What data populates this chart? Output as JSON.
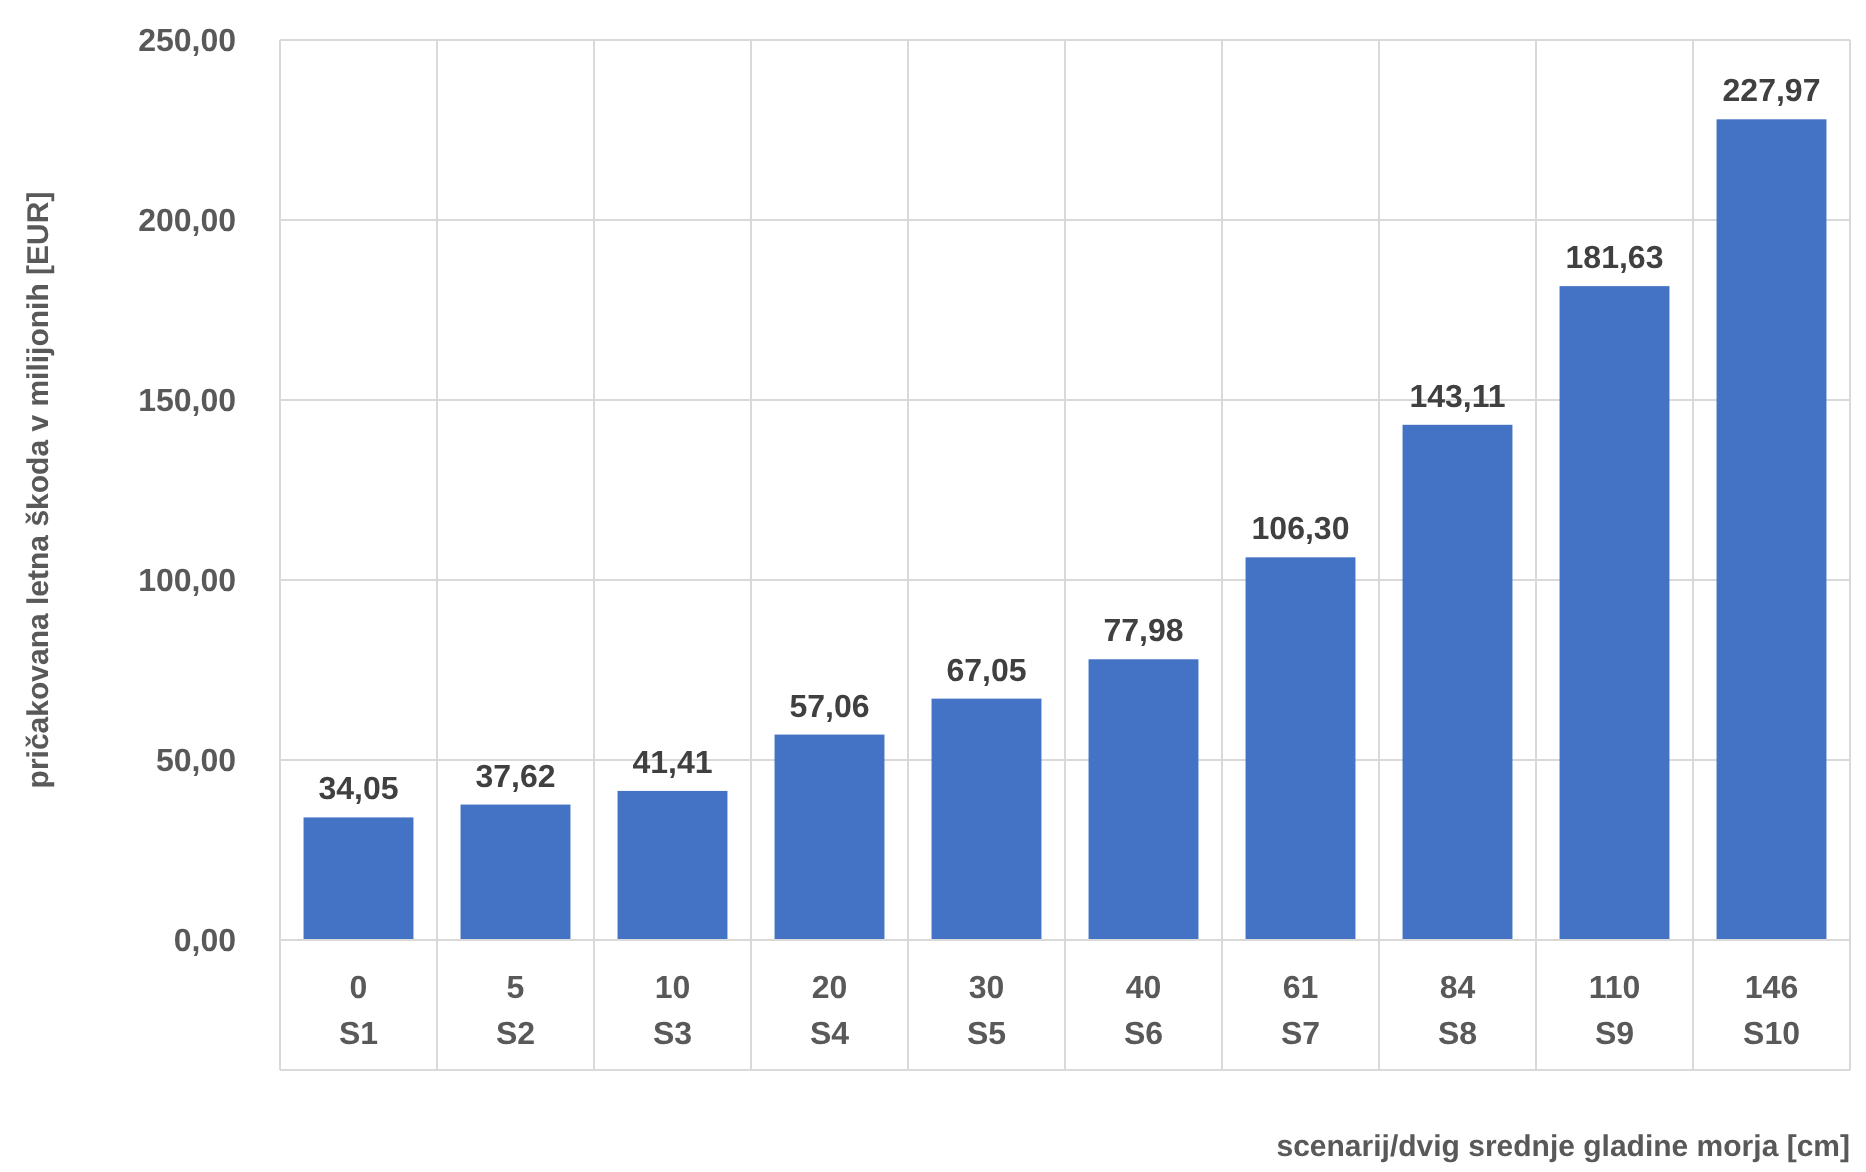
{
  "chart_data": {
    "type": "bar",
    "xlabel": "scenarij/dvig srednje gladine morja [cm]",
    "ylabel": "pričakovana letna škoda v milijonih [EUR]",
    "categories": [
      "0\nS1",
      "5\nS2",
      "10\nS3",
      "20\nS4",
      "30\nS5",
      "40\nS6",
      "61\nS7",
      "84\nS8",
      "110\nS9",
      "146\nS10"
    ],
    "values": [
      34.05,
      37.62,
      41.41,
      57.06,
      67.05,
      77.98,
      106.3,
      143.11,
      181.63,
      227.97
    ],
    "value_labels": [
      "34,05",
      "37,62",
      "41,41",
      "57,06",
      "67,05",
      "77,98",
      "106,30",
      "143,11",
      "181,63",
      "227,97"
    ],
    "color": "#4472c4",
    "ylim": [
      0,
      250
    ],
    "yticks": [
      {
        "value": 0,
        "label": "0,00"
      },
      {
        "value": 50,
        "label": "50,00"
      },
      {
        "value": 100,
        "label": "100,00"
      },
      {
        "value": 150,
        "label": "150,00"
      },
      {
        "value": 200,
        "label": "200,00"
      },
      {
        "value": 250,
        "label": "250,00"
      }
    ],
    "grid": true
  }
}
